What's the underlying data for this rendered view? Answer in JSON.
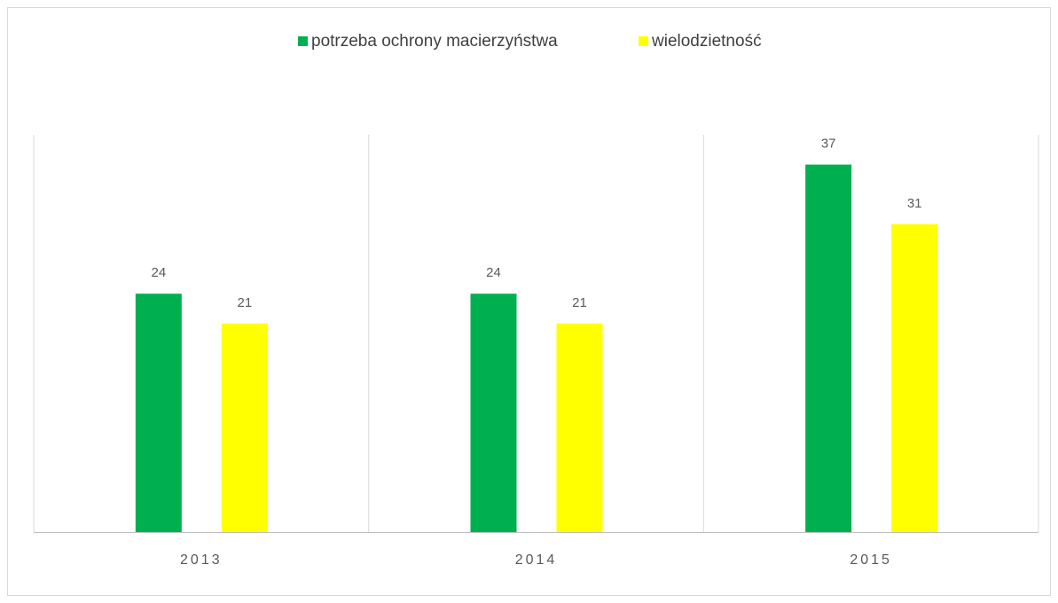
{
  "chart_data": {
    "type": "bar",
    "categories": [
      "2013",
      "2014",
      "2015"
    ],
    "series": [
      {
        "name": "potrzeba ochrony macierzyństwa",
        "color": "#00b050",
        "values": [
          24,
          24,
          37
        ]
      },
      {
        "name": "wielodzietność",
        "color": "#ffff00",
        "values": [
          21,
          21,
          31
        ]
      }
    ],
    "ylim": [
      0,
      40
    ],
    "legend": "top"
  }
}
